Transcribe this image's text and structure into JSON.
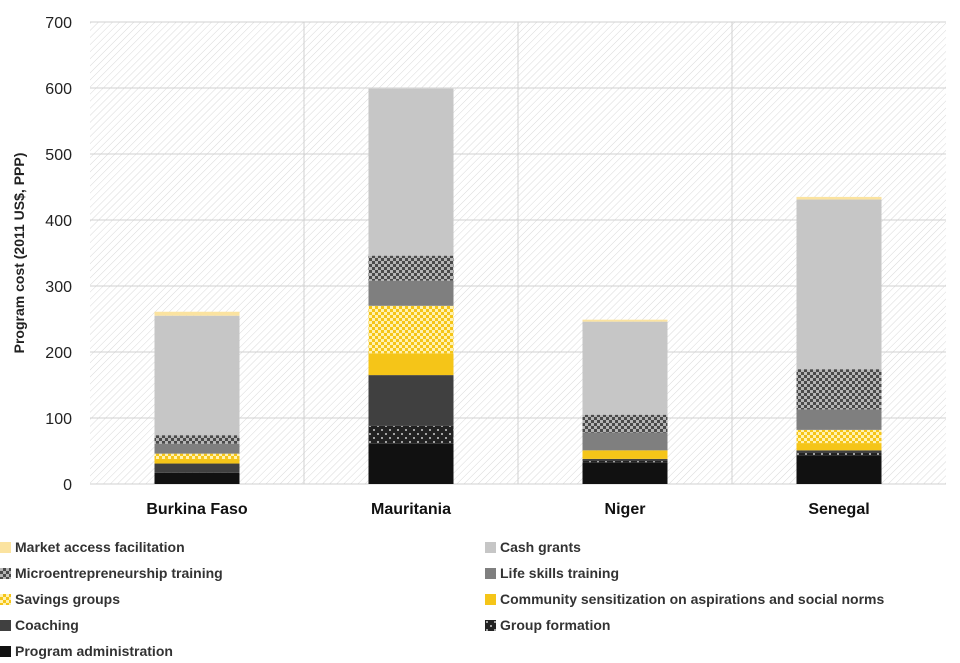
{
  "chart_data": {
    "type": "bar",
    "stacked": true,
    "categories": [
      "Burkina Faso",
      "Mauritania",
      "Niger",
      "Senegal"
    ],
    "ylabel": "Program cost (2011 US$, PPP)",
    "xlabel": "",
    "ylim": [
      0,
      700
    ],
    "yticks": [
      "0",
      "100",
      "200",
      "300",
      "400",
      "500",
      "600",
      "700"
    ],
    "grid": true,
    "legend_position": "bottom",
    "series": [
      {
        "name": "Program administration",
        "color": "#111111",
        "pattern": "solid",
        "values": [
          17,
          61,
          33,
          43
        ]
      },
      {
        "name": "Group formation",
        "color": "#222222",
        "pattern": "dots-white",
        "values": [
          1,
          27,
          3,
          4
        ]
      },
      {
        "name": "Coaching",
        "color": "#404040",
        "pattern": "solid",
        "values": [
          13,
          77,
          2,
          4
        ]
      },
      {
        "name": "Community sensitization on aspirations and social norms",
        "color": "#f5c518",
        "pattern": "solid",
        "values": [
          7,
          33,
          13,
          11
        ]
      },
      {
        "name": "Savings groups",
        "color": "#f5c518",
        "pattern": "checker-yellow",
        "values": [
          8,
          72,
          0,
          20
        ]
      },
      {
        "name": "Life skills training",
        "color": "#7f7f7f",
        "pattern": "solid",
        "values": [
          15,
          38,
          27,
          31
        ]
      },
      {
        "name": "Microentrepreneurship training",
        "color": "#555555",
        "pattern": "checker-dark",
        "values": [
          13,
          38,
          27,
          61
        ]
      },
      {
        "name": "Cash grants",
        "color": "#c6c6c6",
        "pattern": "solid",
        "values": [
          181,
          253,
          141,
          257
        ]
      },
      {
        "name": "Market access facilitation",
        "color": "#fbe3a0",
        "pattern": "solid",
        "values": [
          6,
          0,
          3,
          4
        ]
      }
    ]
  },
  "legend": {
    "rows": [
      [
        "Market access facilitation",
        "Cash grants"
      ],
      [
        "Microentrepreneurship training",
        "Life skills training"
      ],
      [
        "Savings groups",
        "Community sensitization on aspirations and social norms"
      ],
      [
        "Coaching",
        "Group formation"
      ],
      [
        "Program administration"
      ]
    ]
  }
}
